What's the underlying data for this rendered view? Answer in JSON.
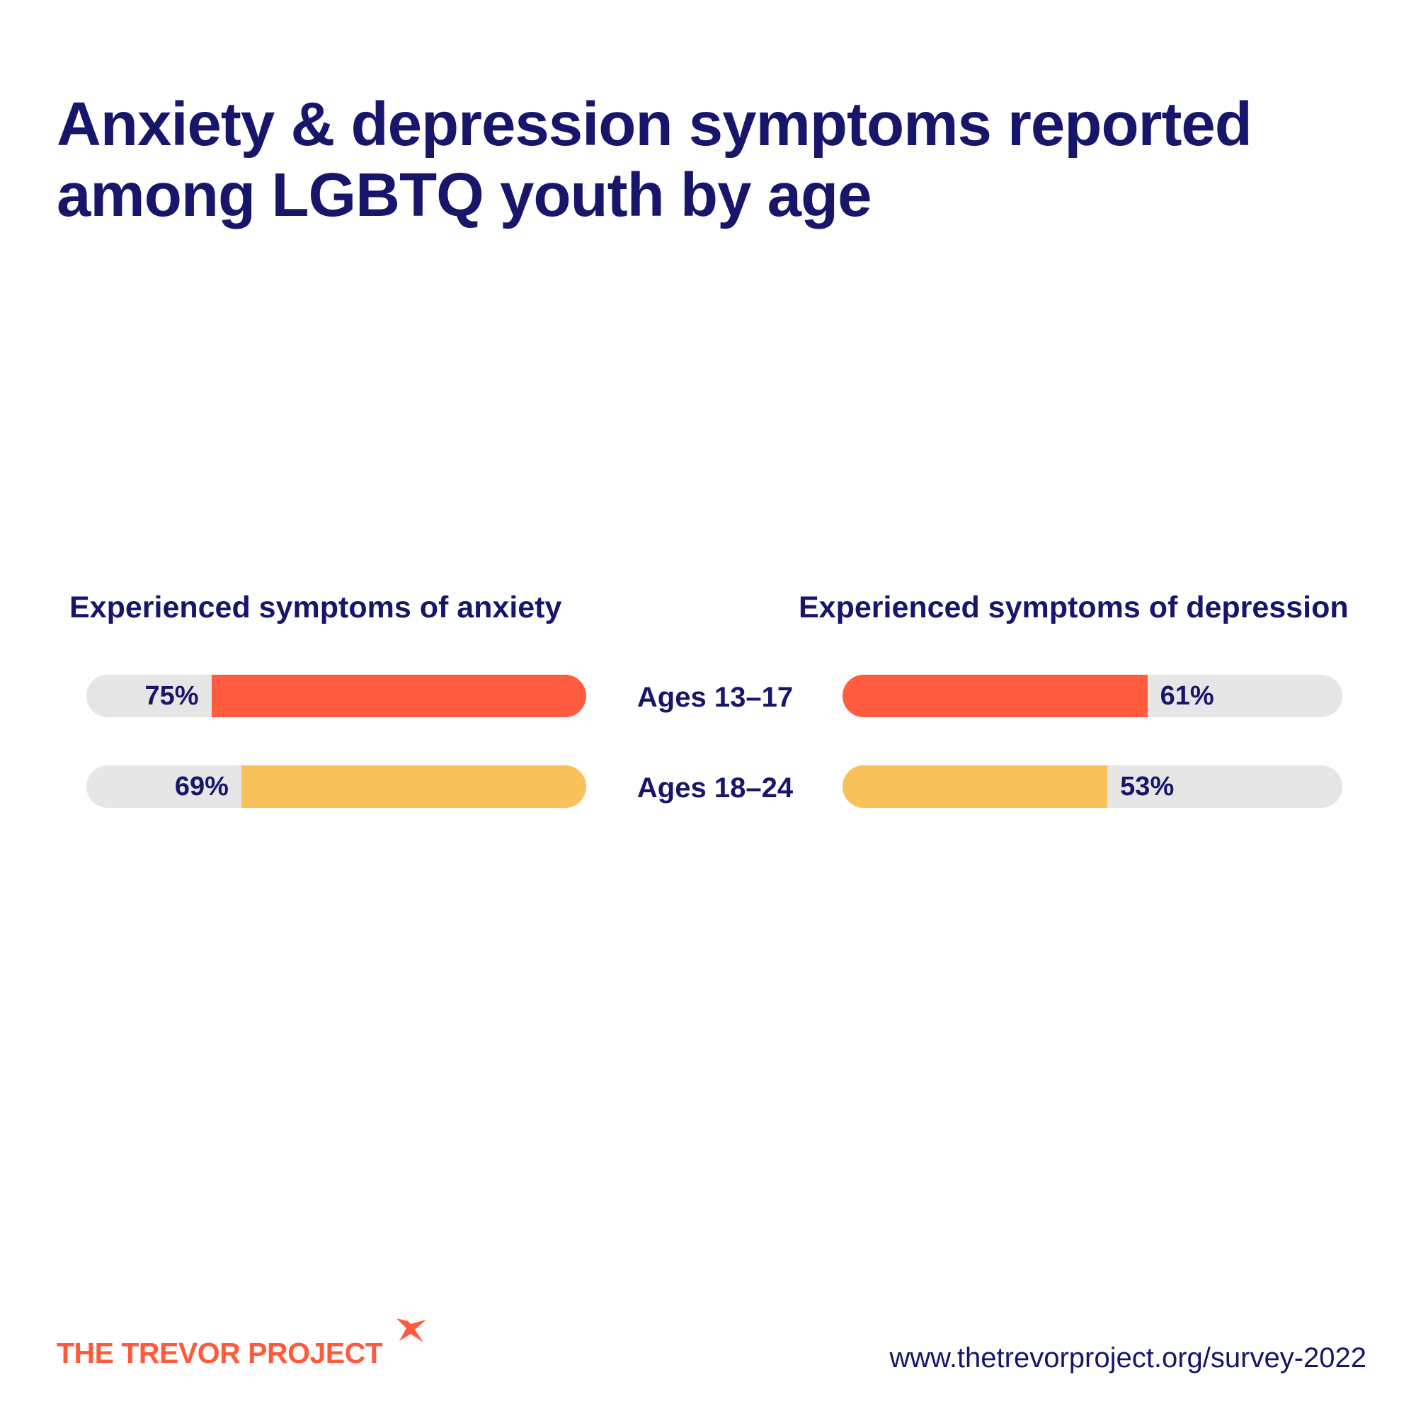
{
  "title": {
    "line1": "Anxiety & depression symptoms reported",
    "line2": "among LGBTQ youth by age"
  },
  "chart_data": {
    "type": "bar",
    "title": "Anxiety & depression symptoms reported among LGBTQ youth by age",
    "categories": [
      "Ages 13–17",
      "Ages 18–24"
    ],
    "series": [
      {
        "name": "Experienced symptoms of anxiety",
        "values": [
          75,
          69
        ],
        "labels": [
          "75%",
          "69%"
        ]
      },
      {
        "name": "Experienced symptoms of depression",
        "values": [
          61,
          53
        ],
        "labels": [
          "61%",
          "53%"
        ]
      }
    ],
    "ylim": [
      0,
      100
    ],
    "colors": {
      "ages_13_17": "#ff5c40",
      "ages_18_24": "#f8c15a",
      "track": "#e6e6e6"
    }
  },
  "footer": {
    "logo_text": "THE TREVOR PROJECT",
    "url": "www.thetrevorproject.org/survey-2022"
  },
  "colors": {
    "navy": "#17166b",
    "brand_orange": "#ff5a3c"
  }
}
